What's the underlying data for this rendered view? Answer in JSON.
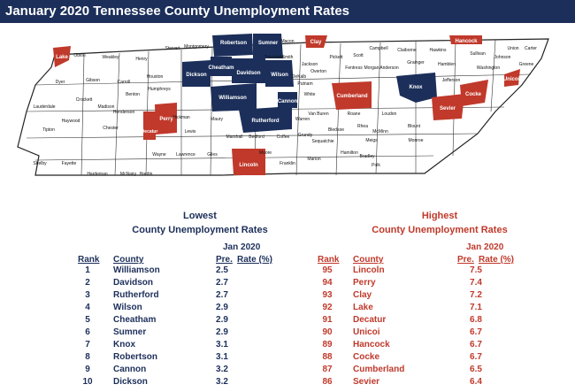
{
  "title": "January 2020 Tennessee County Unemployment Rates",
  "colors": {
    "header": "#1c2f5a",
    "lowest": "#1c2f5a",
    "highest": "#c0392b"
  },
  "map_labels": {
    "lowest": [
      "Robertson",
      "Sumner",
      "Davidson",
      "Wilson",
      "Williamson",
      "Rutherford",
      "Cheatham",
      "Cannon",
      "Knox",
      "Dickson"
    ],
    "highest": [
      "Lake",
      "Clay",
      "Hancock",
      "Unicoi",
      "Cumberland",
      "Cocke",
      "Sevier",
      "Perry",
      "Decatur",
      "Lincoln"
    ],
    "other": [
      "Obion",
      "Weakley",
      "Henry",
      "Stewart",
      "Montgomery",
      "Macon",
      "Jackson",
      "Pickett",
      "Scott",
      "Campbell",
      "Claiborne",
      "Hawkins",
      "Sullivan",
      "Carter",
      "Greene",
      "Washington",
      "Johnson",
      "Union",
      "Grainger",
      "Hamblen",
      "Jefferson",
      "Anderson",
      "Morgan",
      "Fentress",
      "Overton",
      "Putnam",
      "White",
      "Roane",
      "Loudon",
      "Blount",
      "Monroe",
      "McMinn",
      "Rhea",
      "Meigs",
      "Bledsoe",
      "Van Buren",
      "Warren",
      "DeKalb",
      "Smith",
      "Trousdale",
      "Dyer",
      "Gibson",
      "Carroll",
      "Benton",
      "Humphreys",
      "Houston",
      "Lauderdale",
      "Crockett",
      "Madison",
      "Henderson",
      "Haywood",
      "Tipton",
      "Chester",
      "Hickman",
      "Lewis",
      "Maury",
      "Marshall",
      "Bedford",
      "Coffee",
      "Grundy",
      "Sequatchie",
      "Hamilton",
      "Bradley",
      "Polk",
      "Marion",
      "Franklin",
      "Moore",
      "Giles",
      "Lawrence",
      "Wayne",
      "Hardin",
      "McNairy",
      "Hardeman",
      "Fayette",
      "Shelby"
    ]
  },
  "lowest": {
    "title1": "Lowest",
    "title2": "County Unemployment Rates",
    "col_period": "Jan 2020",
    "col_rank": "Rank",
    "col_county": "County",
    "col_pre": "Pre.",
    "col_rate": "Rate (%)",
    "rows": [
      {
        "rank": "1",
        "county": "Williamson",
        "rate": "2.5"
      },
      {
        "rank": "2",
        "county": "Davidson",
        "rate": "2.7"
      },
      {
        "rank": "3",
        "county": "Rutherford",
        "rate": "2.7"
      },
      {
        "rank": "4",
        "county": "Wilson",
        "rate": "2.9"
      },
      {
        "rank": "5",
        "county": "Cheatham",
        "rate": "2.9"
      },
      {
        "rank": "6",
        "county": "Sumner",
        "rate": "2.9"
      },
      {
        "rank": "7",
        "county": "Knox",
        "rate": "3.1"
      },
      {
        "rank": "8",
        "county": "Robertson",
        "rate": "3.1"
      },
      {
        "rank": "9",
        "county": "Cannon",
        "rate": "3.2"
      },
      {
        "rank": "10",
        "county": "Dickson",
        "rate": "3.2"
      }
    ]
  },
  "highest": {
    "title1": "Highest",
    "title2": "County Unemployment Rates",
    "col_period": "Jan 2020",
    "col_rank": "Rank",
    "col_county": "County",
    "col_pre": "Pre.",
    "col_rate": "Rate (%)",
    "rows": [
      {
        "rank": "95",
        "county": "Lincoln",
        "rate": "7.5"
      },
      {
        "rank": "94",
        "county": "Perry",
        "rate": "7.4"
      },
      {
        "rank": "93",
        "county": "Clay",
        "rate": "7.2"
      },
      {
        "rank": "92",
        "county": "Lake",
        "rate": "7.1"
      },
      {
        "rank": "91",
        "county": "Decatur",
        "rate": "6.8"
      },
      {
        "rank": "90",
        "county": "Unicoi",
        "rate": "6.7"
      },
      {
        "rank": "89",
        "county": "Hancock",
        "rate": "6.7"
      },
      {
        "rank": "88",
        "county": "Cocke",
        "rate": "6.7"
      },
      {
        "rank": "87",
        "county": "Cumberland",
        "rate": "6.5"
      },
      {
        "rank": "86",
        "county": "Sevier",
        "rate": "6.4"
      }
    ]
  }
}
